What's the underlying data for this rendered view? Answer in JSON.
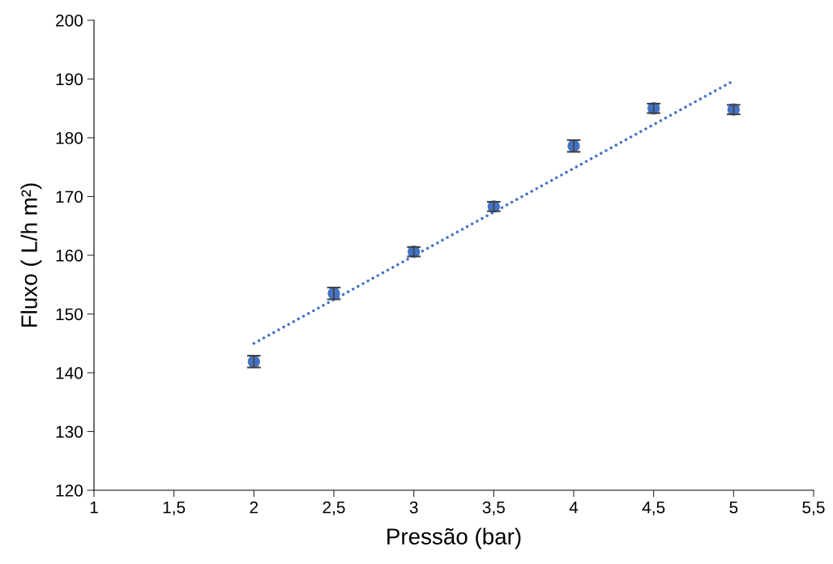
{
  "chart_data": {
    "type": "scatter",
    "xlabel": "Pressão (bar)",
    "ylabel": "Fluxo ( L/h m²)",
    "x": [
      2,
      2.5,
      3,
      3.5,
      4,
      4.5,
      5
    ],
    "series": [
      {
        "color": "#4472c4",
        "values": [
          141.9,
          153.5,
          160.6,
          168.3,
          178.6,
          185.0,
          184.8
        ],
        "errors": [
          1,
          1,
          0.8,
          0.8,
          1,
          0.8,
          0.8
        ],
        "marker": "circle"
      },
      {
        "type": "line",
        "color": "#4472c4",
        "x": [
          2,
          5
        ],
        "values": [
          145.0,
          189.7
        ],
        "line_style": "dotted",
        "marker": "none"
      }
    ],
    "xlim": [
      1,
      5.5
    ],
    "ylim": [
      120,
      200
    ],
    "xticks": [
      1,
      {
        "value": 1.5,
        "label": "1,5"
      },
      2,
      {
        "value": 2.5,
        "label": "2,5"
      },
      3,
      {
        "value": 3.5,
        "label": "3,5"
      },
      4,
      {
        "value": 4.5,
        "label": "4,5"
      },
      5,
      {
        "value": 5.5,
        "label": "5,5"
      }
    ],
    "yticks": [
      120,
      130,
      140,
      150,
      160,
      170,
      180,
      190,
      200
    ],
    "grid": false,
    "legend": false
  }
}
